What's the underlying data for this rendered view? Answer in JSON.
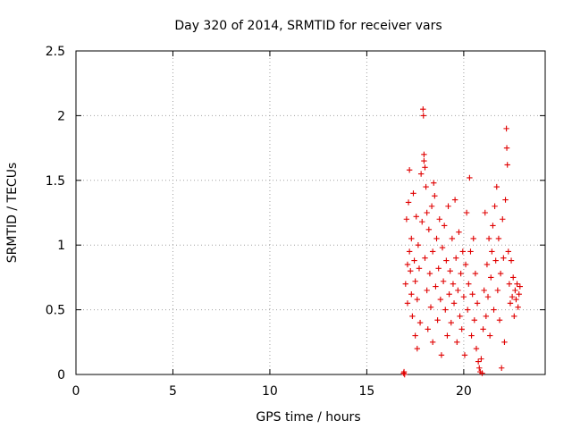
{
  "chart_data": {
    "type": "scatter",
    "title": "Day 320 of 2014, SRMTID for receiver vars",
    "xlabel": "GPS time / hours",
    "ylabel": "SRMTID / TECUs",
    "xlim": [
      0,
      24.2
    ],
    "ylim": [
      0,
      2.5
    ],
    "xticks": [
      "0",
      "5",
      "10",
      "15",
      "20"
    ],
    "xtick_values": [
      0,
      5,
      10,
      15,
      20
    ],
    "yticks": [
      "0",
      "0.5",
      "1",
      "1.5",
      "2",
      "2.5"
    ],
    "ytick_values": [
      0,
      0.5,
      1,
      1.5,
      2,
      2.5
    ],
    "grid": true,
    "marker": "plus",
    "color": "#e00000",
    "points": [
      [
        16.9,
        0.01
      ],
      [
        16.95,
        0.0
      ],
      [
        16.92,
        0.02
      ],
      [
        17.0,
        0.7
      ],
      [
        17.05,
        1.2
      ],
      [
        17.1,
        0.85
      ],
      [
        17.1,
        0.55
      ],
      [
        17.15,
        1.33
      ],
      [
        17.2,
        1.58
      ],
      [
        17.2,
        0.95
      ],
      [
        17.25,
        0.8
      ],
      [
        17.3,
        1.05
      ],
      [
        17.3,
        0.62
      ],
      [
        17.35,
        0.45
      ],
      [
        17.4,
        1.4
      ],
      [
        17.45,
        0.88
      ],
      [
        17.5,
        0.72
      ],
      [
        17.5,
        0.3
      ],
      [
        17.55,
        1.22
      ],
      [
        17.6,
        0.58
      ],
      [
        17.6,
        0.2
      ],
      [
        17.65,
        1.0
      ],
      [
        17.7,
        0.82
      ],
      [
        17.75,
        0.4
      ],
      [
        17.8,
        1.55
      ],
      [
        17.85,
        1.18
      ],
      [
        17.9,
        2.05
      ],
      [
        17.92,
        2.0
      ],
      [
        17.95,
        1.7
      ],
      [
        17.95,
        1.65
      ],
      [
        18.0,
        1.6
      ],
      [
        18.0,
        0.9
      ],
      [
        18.05,
        1.45
      ],
      [
        18.1,
        1.25
      ],
      [
        18.1,
        0.65
      ],
      [
        18.15,
        0.35
      ],
      [
        18.2,
        1.12
      ],
      [
        18.25,
        0.78
      ],
      [
        18.3,
        0.52
      ],
      [
        18.35,
        1.3
      ],
      [
        18.4,
        0.25
      ],
      [
        18.4,
        0.95
      ],
      [
        18.45,
        1.48
      ],
      [
        18.5,
        1.38
      ],
      [
        18.55,
        0.68
      ],
      [
        18.6,
        1.05
      ],
      [
        18.65,
        0.42
      ],
      [
        18.7,
        0.82
      ],
      [
        18.75,
        1.2
      ],
      [
        18.8,
        0.58
      ],
      [
        18.85,
        0.15
      ],
      [
        18.9,
        0.98
      ],
      [
        18.95,
        0.72
      ],
      [
        19.0,
        1.15
      ],
      [
        19.05,
        0.5
      ],
      [
        19.1,
        0.88
      ],
      [
        19.15,
        0.3
      ],
      [
        19.2,
        1.3
      ],
      [
        19.25,
        0.62
      ],
      [
        19.3,
        0.8
      ],
      [
        19.35,
        0.4
      ],
      [
        19.4,
        1.05
      ],
      [
        19.45,
        0.7
      ],
      [
        19.5,
        0.55
      ],
      [
        19.55,
        1.35
      ],
      [
        19.6,
        0.9
      ],
      [
        19.65,
        0.25
      ],
      [
        19.7,
        0.65
      ],
      [
        19.75,
        1.1
      ],
      [
        19.8,
        0.45
      ],
      [
        19.85,
        0.78
      ],
      [
        19.9,
        0.35
      ],
      [
        19.95,
        0.95
      ],
      [
        20.0,
        0.6
      ],
      [
        20.05,
        0.15
      ],
      [
        20.1,
        0.85
      ],
      [
        20.15,
        1.25
      ],
      [
        20.2,
        0.5
      ],
      [
        20.25,
        0.7
      ],
      [
        20.3,
        1.52
      ],
      [
        20.35,
        0.95
      ],
      [
        20.4,
        0.3
      ],
      [
        20.45,
        0.62
      ],
      [
        20.5,
        1.05
      ],
      [
        20.55,
        0.42
      ],
      [
        20.6,
        0.78
      ],
      [
        20.65,
        0.2
      ],
      [
        20.7,
        0.55
      ],
      [
        20.75,
        0.1
      ],
      [
        20.8,
        0.05
      ],
      [
        20.85,
        0.02
      ],
      [
        20.9,
        0.12
      ],
      [
        20.95,
        0.01
      ],
      [
        21.0,
        0.35
      ],
      [
        21.05,
        0.65
      ],
      [
        21.1,
        1.25
      ],
      [
        21.15,
        0.45
      ],
      [
        21.2,
        0.85
      ],
      [
        21.25,
        0.6
      ],
      [
        21.3,
        1.05
      ],
      [
        21.35,
        0.3
      ],
      [
        21.4,
        0.75
      ],
      [
        21.45,
        0.95
      ],
      [
        21.5,
        1.15
      ],
      [
        21.55,
        0.5
      ],
      [
        21.6,
        1.3
      ],
      [
        21.65,
        0.88
      ],
      [
        21.7,
        1.45
      ],
      [
        21.75,
        0.65
      ],
      [
        21.8,
        1.05
      ],
      [
        21.85,
        0.42
      ],
      [
        21.9,
        0.78
      ],
      [
        21.95,
        0.05
      ],
      [
        22.0,
        1.2
      ],
      [
        22.05,
        0.9
      ],
      [
        22.1,
        0.25
      ],
      [
        22.15,
        1.35
      ],
      [
        22.2,
        1.9
      ],
      [
        22.22,
        1.75
      ],
      [
        22.25,
        1.62
      ],
      [
        22.3,
        0.95
      ],
      [
        22.35,
        0.7
      ],
      [
        22.4,
        0.55
      ],
      [
        22.45,
        0.88
      ],
      [
        22.5,
        0.6
      ],
      [
        22.55,
        0.75
      ],
      [
        22.6,
        0.45
      ],
      [
        22.65,
        0.65
      ],
      [
        22.7,
        0.58
      ],
      [
        22.75,
        0.7
      ],
      [
        22.8,
        0.52
      ],
      [
        22.85,
        0.62
      ],
      [
        22.9,
        0.68
      ]
    ]
  }
}
